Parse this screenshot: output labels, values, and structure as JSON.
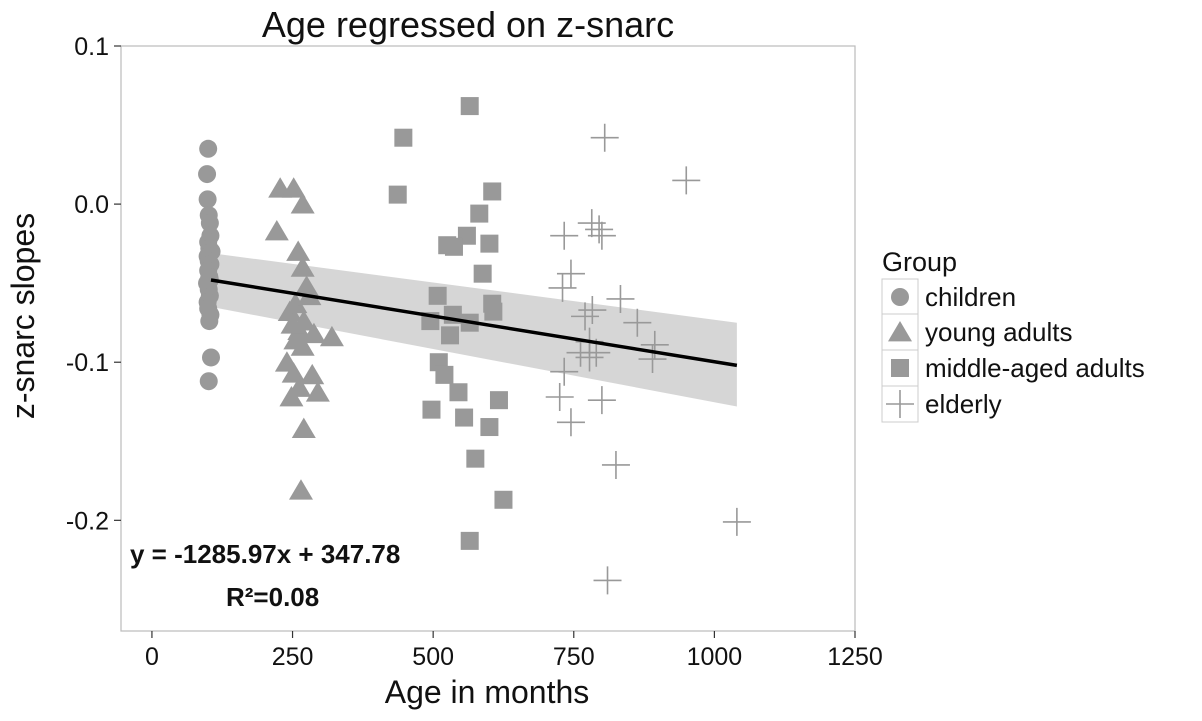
{
  "chart_data": {
    "type": "scatter",
    "title": "Age regressed on z-snarc",
    "xlabel": "Age in months",
    "ylabel": "z-snarc slopes",
    "xlim": [
      -55,
      1250
    ],
    "ylim": [
      -0.27,
      0.1
    ],
    "xticks": [
      0,
      250,
      500,
      750,
      1000,
      1250
    ],
    "yticks": [
      0.1,
      0.0,
      -0.1,
      -0.2
    ],
    "ytick_labels": [
      "0.1",
      "0.0",
      "-0.1",
      "-0.2"
    ],
    "legend": {
      "title": "Group",
      "position": "right",
      "entries": [
        "children",
        "young adults",
        "middle-aged adults",
        "elderly"
      ]
    },
    "annotations": {
      "equation": "y = -1285.97x + 347.78",
      "r_squared": "R²=0.08"
    },
    "regression": {
      "x": [
        105,
        1040
      ],
      "y": [
        -0.048,
        -0.102
      ],
      "ci_upper": [
        -0.031,
        -0.075
      ],
      "ci_lower": [
        -0.065,
        -0.128
      ]
    },
    "series": [
      {
        "name": "children",
        "marker": "circle",
        "points": [
          [
            100,
            0.035
          ],
          [
            98,
            0.019
          ],
          [
            99,
            0.003
          ],
          [
            101,
            -0.007
          ],
          [
            103,
            -0.012
          ],
          [
            104,
            -0.02
          ],
          [
            100,
            -0.024
          ],
          [
            102,
            -0.028
          ],
          [
            106,
            -0.03
          ],
          [
            99,
            -0.033
          ],
          [
            101,
            -0.036
          ],
          [
            104,
            -0.038
          ],
          [
            100,
            -0.042
          ],
          [
            102,
            -0.046
          ],
          [
            98,
            -0.05
          ],
          [
            101,
            -0.054
          ],
          [
            103,
            -0.058
          ],
          [
            99,
            -0.062
          ],
          [
            100,
            -0.066
          ],
          [
            104,
            -0.07
          ],
          [
            102,
            -0.074
          ],
          [
            105,
            -0.097
          ],
          [
            101,
            -0.112
          ],
          [
            103,
            -0.048
          ]
        ]
      },
      {
        "name": "young adults",
        "marker": "triangle",
        "points": [
          [
            228,
            0.01
          ],
          [
            252,
            0.01
          ],
          [
            268,
            0.0
          ],
          [
            222,
            -0.017
          ],
          [
            260,
            -0.03
          ],
          [
            268,
            -0.04
          ],
          [
            275,
            -0.052
          ],
          [
            255,
            -0.063
          ],
          [
            280,
            -0.058
          ],
          [
            245,
            -0.068
          ],
          [
            270,
            -0.074
          ],
          [
            262,
            -0.08
          ],
          [
            255,
            -0.086
          ],
          [
            288,
            -0.082
          ],
          [
            320,
            -0.084
          ],
          [
            268,
            -0.09
          ],
          [
            240,
            -0.1
          ],
          [
            252,
            -0.107
          ],
          [
            285,
            -0.108
          ],
          [
            262,
            -0.116
          ],
          [
            248,
            -0.122
          ],
          [
            295,
            -0.119
          ],
          [
            270,
            -0.142
          ],
          [
            265,
            -0.181
          ],
          [
            250,
            -0.076
          ]
        ]
      },
      {
        "name": "middle-aged adults",
        "marker": "square",
        "points": [
          [
            565,
            0.062
          ],
          [
            447,
            0.042
          ],
          [
            437,
            0.006
          ],
          [
            605,
            0.008
          ],
          [
            582,
            -0.006
          ],
          [
            560,
            -0.02
          ],
          [
            525,
            -0.026
          ],
          [
            537,
            -0.027
          ],
          [
            600,
            -0.025
          ],
          [
            588,
            -0.044
          ],
          [
            508,
            -0.058
          ],
          [
            605,
            -0.063
          ],
          [
            607,
            -0.068
          ],
          [
            535,
            -0.07
          ],
          [
            495,
            -0.074
          ],
          [
            565,
            -0.075
          ],
          [
            530,
            -0.083
          ],
          [
            510,
            -0.1
          ],
          [
            520,
            -0.108
          ],
          [
            545,
            -0.119
          ],
          [
            617,
            -0.124
          ],
          [
            497,
            -0.13
          ],
          [
            555,
            -0.135
          ],
          [
            600,
            -0.141
          ],
          [
            575,
            -0.161
          ],
          [
            625,
            -0.187
          ],
          [
            565,
            -0.213
          ]
        ]
      },
      {
        "name": "elderly",
        "marker": "cross",
        "points": [
          [
            805,
            0.042
          ],
          [
            950,
            0.015
          ],
          [
            782,
            -0.012
          ],
          [
            795,
            -0.016
          ],
          [
            733,
            -0.02
          ],
          [
            800,
            -0.02
          ],
          [
            745,
            -0.044
          ],
          [
            730,
            -0.053
          ],
          [
            833,
            -0.06
          ],
          [
            783,
            -0.067
          ],
          [
            770,
            -0.071
          ],
          [
            863,
            -0.075
          ],
          [
            778,
            -0.087
          ],
          [
            894,
            -0.089
          ],
          [
            762,
            -0.094
          ],
          [
            790,
            -0.094
          ],
          [
            778,
            -0.097
          ],
          [
            890,
            -0.098
          ],
          [
            733,
            -0.106
          ],
          [
            725,
            -0.122
          ],
          [
            800,
            -0.124
          ],
          [
            745,
            -0.138
          ],
          [
            825,
            -0.165
          ],
          [
            1040,
            -0.201
          ],
          [
            810,
            -0.238
          ]
        ]
      }
    ],
    "colors": {
      "points": "#999999",
      "ci_band": "#d2d2d2",
      "line": "#000000",
      "panel_border": "#bbbbbb"
    }
  }
}
